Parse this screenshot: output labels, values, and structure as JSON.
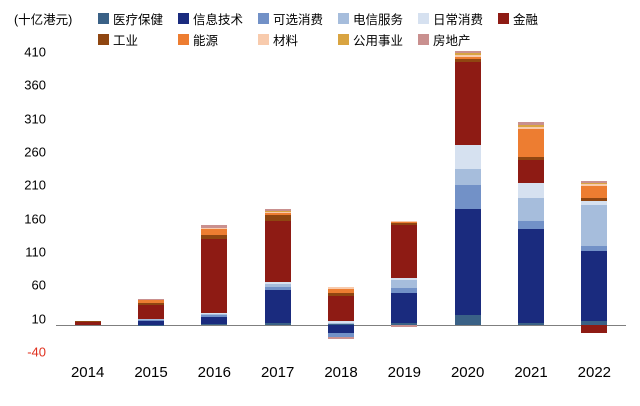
{
  "chart": {
    "unit": "(十亿港元)"
  },
  "chart_data": {
    "type": "bar",
    "subtype": "stacked-bar-with-negatives",
    "title": "",
    "unit_label": "(十亿港元)",
    "legend_position": "top",
    "grid": false,
    "ylim": [
      -40,
      410
    ],
    "y_ticks": [
      410,
      360,
      310,
      260,
      210,
      160,
      110,
      60,
      10,
      -40
    ],
    "negative_tick_color": "#E0301E",
    "categories": [
      "2014",
      "2015",
      "2016",
      "2017",
      "2018",
      "2019",
      "2020",
      "2021",
      "2022"
    ],
    "series": [
      {
        "name": "医疗保健",
        "color": "#3A6186",
        "values": [
          0,
          1,
          2,
          3,
          2,
          3,
          15,
          4,
          6
        ]
      },
      {
        "name": "信息技术",
        "color": "#1A2B7E",
        "values": [
          0,
          6,
          10,
          50,
          -12,
          45,
          160,
          140,
          105
        ]
      },
      {
        "name": "可选消费",
        "color": "#7291C7",
        "values": [
          0,
          2,
          3,
          5,
          -5,
          8,
          35,
          12,
          8
        ]
      },
      {
        "name": "电信服务",
        "color": "#A6BDDC",
        "values": [
          0,
          1,
          2,
          4,
          2,
          12,
          25,
          35,
          62
        ]
      },
      {
        "name": "日常消费",
        "color": "#D6E1F0",
        "values": [
          0,
          0,
          1,
          3,
          2,
          3,
          35,
          22,
          6
        ]
      },
      {
        "name": "金融",
        "color": "#8E1B14",
        "values": [
          6,
          20,
          112,
          92,
          38,
          80,
          125,
          35,
          -12
        ]
      },
      {
        "name": "工业",
        "color": "#8F4611",
        "values": [
          1,
          4,
          6,
          8,
          4,
          3,
          4,
          5,
          4
        ]
      },
      {
        "name": "能源",
        "color": "#ED7D31",
        "values": [
          0,
          4,
          8,
          4,
          7,
          2,
          4,
          42,
          18
        ]
      },
      {
        "name": "材料",
        "color": "#F8CBAD",
        "values": [
          0,
          1,
          2,
          2,
          2,
          1,
          3,
          3,
          3
        ]
      },
      {
        "name": "公用事业",
        "color": "#D9A441",
        "values": [
          0,
          0,
          0,
          1,
          0,
          0,
          2,
          2,
          2
        ]
      },
      {
        "name": "房地产",
        "color": "#C9908F",
        "values": [
          0,
          1,
          4,
          3,
          -3,
          -2,
          3,
          5,
          3
        ]
      }
    ]
  }
}
